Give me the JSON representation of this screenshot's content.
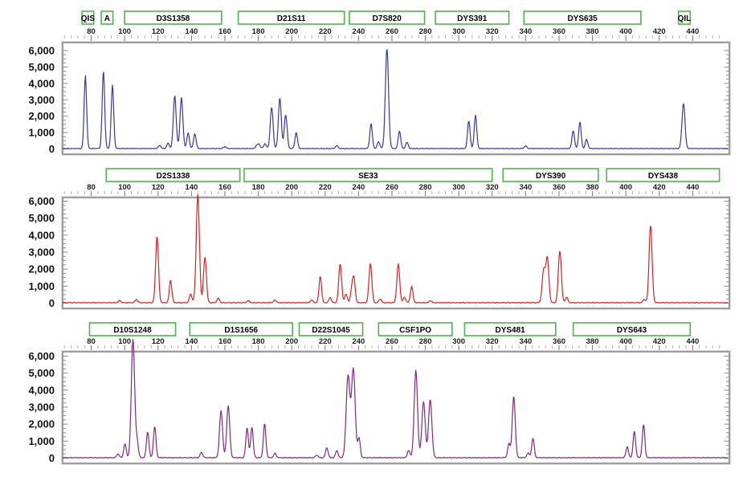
{
  "chart_data": {
    "type": "line",
    "title": "",
    "xlabel": "",
    "ylabel": "",
    "x_axis": {
      "tick_labels": [
        80,
        100,
        120,
        140,
        160,
        180,
        200,
        220,
        240,
        260,
        280,
        300,
        320,
        340,
        360,
        380,
        400,
        420,
        440
      ],
      "major_step_bp": 20,
      "minor_step_bp": 4,
      "tick_start_bp": 64,
      "tick_end_bp": 456
    },
    "y_axis": {
      "tick_labels": [
        "6,000",
        "5,000",
        "4,000",
        "3,000",
        "2,000",
        "1,000",
        "0"
      ],
      "ylim": [
        0,
        6000
      ],
      "minor_step": 250,
      "major_step": 1000
    },
    "marker_box_border_color": "#4cb648",
    "frame_color": "#9c9c9c",
    "panels": [
      {
        "id": "blue-channel",
        "color": "#3539a4",
        "markers": [
          {
            "label": "QIS",
            "start_bp": 74.5,
            "end_bp": 81.5
          },
          {
            "label": "A",
            "start_bp": 86,
            "end_bp": 93
          },
          {
            "label": "D3S1358",
            "start_bp": 100,
            "end_bp": 158
          },
          {
            "label": "D21S11",
            "start_bp": 168,
            "end_bp": 231.5
          },
          {
            "label": "D7S820",
            "start_bp": 234.5,
            "end_bp": 279.5
          },
          {
            "label": "DYS391",
            "start_bp": 286,
            "end_bp": 330
          },
          {
            "label": "DYS635",
            "start_bp": 339,
            "end_bp": 409
          },
          {
            "label": "QIL",
            "start_bp": 431.5,
            "end_bp": 438.5
          }
        ],
        "peaks": [
          {
            "bp": 76.5,
            "rfu": 4450
          },
          {
            "bp": 87.3,
            "rfu": 4700
          },
          {
            "bp": 92.7,
            "rfu": 3870
          },
          {
            "bp": 121,
            "rfu": 200
          },
          {
            "bp": 126,
            "rfu": 330
          },
          {
            "bp": 130,
            "rfu": 3220,
            "w": 0.85
          },
          {
            "bp": 134,
            "rfu": 3100,
            "w": 0.85
          },
          {
            "bp": 138,
            "rfu": 950
          },
          {
            "bp": 142,
            "rfu": 900
          },
          {
            "bp": 160,
            "rfu": 120
          },
          {
            "bp": 179,
            "rfu": 180
          },
          {
            "bp": 180.5,
            "rfu": 250
          },
          {
            "bp": 184,
            "rfu": 300
          },
          {
            "bp": 188,
            "rfu": 2520,
            "w": 0.85
          },
          {
            "bp": 192.9,
            "rfu": 3100,
            "w": 0.85
          },
          {
            "bp": 196.4,
            "rfu": 2060,
            "w": 0.85
          },
          {
            "bp": 202.7,
            "rfu": 960
          },
          {
            "bp": 227,
            "rfu": 180
          },
          {
            "bp": 247.5,
            "rfu": 1520
          },
          {
            "bp": 252,
            "rfu": 420
          },
          {
            "bp": 257,
            "rfu": 6100,
            "w": 0.95
          },
          {
            "bp": 264.5,
            "rfu": 1060
          },
          {
            "bp": 269,
            "rfu": 380
          },
          {
            "bp": 306,
            "rfu": 1700
          },
          {
            "bp": 310,
            "rfu": 2020
          },
          {
            "bp": 340,
            "rfu": 160
          },
          {
            "bp": 368.5,
            "rfu": 1100
          },
          {
            "bp": 372.5,
            "rfu": 1620
          },
          {
            "bp": 376.5,
            "rfu": 560
          },
          {
            "bp": 434.5,
            "rfu": 2760,
            "w": 0.9
          }
        ]
      },
      {
        "id": "red-channel",
        "color": "#d92121",
        "markers": [
          {
            "label": "D2S1338",
            "start_bp": 89,
            "end_bp": 169
          },
          {
            "label": "SE33",
            "start_bp": 171.5,
            "end_bp": 320
          },
          {
            "label": "DYS390",
            "start_bp": 326.5,
            "end_bp": 383.5
          },
          {
            "label": "DYS438",
            "start_bp": 388.5,
            "end_bp": 456
          }
        ],
        "peaks": [
          {
            "bp": 97,
            "rfu": 130
          },
          {
            "bp": 107,
            "rfu": 190
          },
          {
            "bp": 119.4,
            "rfu": 3920,
            "w": 0.85
          },
          {
            "bp": 127.5,
            "rfu": 1330
          },
          {
            "bp": 139.5,
            "rfu": 520
          },
          {
            "bp": 143.8,
            "rfu": 6350,
            "w": 0.95
          },
          {
            "bp": 148.1,
            "rfu": 2700,
            "w": 0.85
          },
          {
            "bp": 156,
            "rfu": 260
          },
          {
            "bp": 174,
            "rfu": 120
          },
          {
            "bp": 190,
            "rfu": 160
          },
          {
            "bp": 212,
            "rfu": 170
          },
          {
            "bp": 217.1,
            "rfu": 1560
          },
          {
            "bp": 223,
            "rfu": 300
          },
          {
            "bp": 229,
            "rfu": 2300,
            "w": 0.85
          },
          {
            "bp": 232.5,
            "rfu": 520
          },
          {
            "bp": 236,
            "rfu": 820
          },
          {
            "bp": 237.3,
            "rfu": 1350
          },
          {
            "bp": 247.1,
            "rfu": 2300,
            "w": 0.85
          },
          {
            "bp": 253,
            "rfu": 220
          },
          {
            "bp": 263.8,
            "rfu": 2260,
            "w": 0.85
          },
          {
            "bp": 267.5,
            "rfu": 320
          },
          {
            "bp": 271.8,
            "rfu": 960
          },
          {
            "bp": 283,
            "rfu": 120
          },
          {
            "bp": 350.8,
            "rfu": 1900,
            "w": 0.9
          },
          {
            "bp": 353,
            "rfu": 2620,
            "w": 0.9
          },
          {
            "bp": 360.5,
            "rfu": 3060,
            "w": 0.9
          },
          {
            "bp": 364.5,
            "rfu": 320
          },
          {
            "bp": 411,
            "rfu": 200
          },
          {
            "bp": 414.8,
            "rfu": 4560,
            "w": 0.9
          }
        ]
      },
      {
        "id": "purple-channel",
        "color": "#7e2c80",
        "markers": [
          {
            "label": "D10S1248",
            "start_bp": 79,
            "end_bp": 130.5
          },
          {
            "label": "D1S1656",
            "start_bp": 139,
            "end_bp": 200.5
          },
          {
            "label": "D22S1045",
            "start_bp": 204.5,
            "end_bp": 242.5
          },
          {
            "label": "CSF1PO",
            "start_bp": 252,
            "end_bp": 296
          },
          {
            "label": "DYS481",
            "start_bp": 303.5,
            "end_bp": 358
          },
          {
            "label": "DYS643",
            "start_bp": 368.5,
            "end_bp": 438.5
          }
        ],
        "peaks": [
          {
            "bp": 96,
            "rfu": 220
          },
          {
            "bp": 100.2,
            "rfu": 820
          },
          {
            "bp": 105,
            "rfu": 7000,
            "w": 1.0
          },
          {
            "bp": 107.5,
            "rfu": 900
          },
          {
            "bp": 113.8,
            "rfu": 1530
          },
          {
            "bp": 118,
            "rfu": 1820
          },
          {
            "bp": 146,
            "rfu": 320
          },
          {
            "bp": 157.7,
            "rfu": 2780,
            "w": 0.9
          },
          {
            "bp": 162,
            "rfu": 3060,
            "w": 0.9
          },
          {
            "bp": 173.3,
            "rfu": 1760
          },
          {
            "bp": 176.2,
            "rfu": 1800
          },
          {
            "bp": 183.8,
            "rfu": 2000
          },
          {
            "bp": 190,
            "rfu": 260
          },
          {
            "bp": 215,
            "rfu": 150
          },
          {
            "bp": 221,
            "rfu": 590
          },
          {
            "bp": 227,
            "rfu": 420
          },
          {
            "bp": 233.7,
            "rfu": 4820,
            "w": 1.1
          },
          {
            "bp": 236.9,
            "rfu": 5220,
            "w": 1.1
          },
          {
            "bp": 240.3,
            "rfu": 1140
          },
          {
            "bp": 270,
            "rfu": 430
          },
          {
            "bp": 274.3,
            "rfu": 5150,
            "w": 1.0
          },
          {
            "bp": 278.9,
            "rfu": 3300,
            "w": 1.0
          },
          {
            "bp": 282.9,
            "rfu": 3420,
            "w": 1.0
          },
          {
            "bp": 330,
            "rfu": 820
          },
          {
            "bp": 332.9,
            "rfu": 3610,
            "w": 0.9
          },
          {
            "bp": 341.5,
            "rfu": 280
          },
          {
            "bp": 344.4,
            "rfu": 1140
          },
          {
            "bp": 400.8,
            "rfu": 640
          },
          {
            "bp": 405.1,
            "rfu": 1550
          },
          {
            "bp": 410.6,
            "rfu": 1950
          }
        ]
      }
    ]
  }
}
